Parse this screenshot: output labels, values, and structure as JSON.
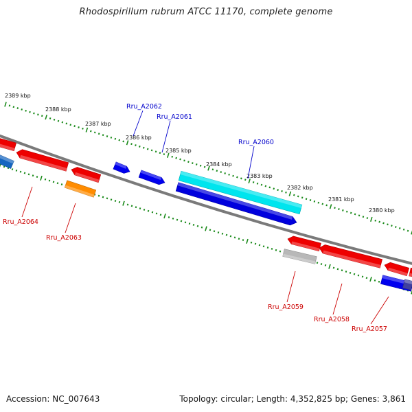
{
  "title": "Rhodospirillum rubrum ATCC 11170, complete genome",
  "footer": {
    "accession": "Accession: NC_007643",
    "topology": "Topology: circular; Length: 4,352,825 bp; Genes: 3,861"
  },
  "colors": {
    "backbone": "#7a7a7a",
    "ticks": "#1a8a1a",
    "label_forward": "#0000cc",
    "label_reverse": "#cc0000"
  },
  "kbp_labels": [
    "2389 kbp",
    "2388 kbp",
    "2387 kbp",
    "2386 kbp",
    "2385 kbp",
    "2384 kbp",
    "2383 kbp",
    "2382 kbp",
    "2381 kbp",
    "2380 kbp"
  ],
  "genes_forward": [
    {
      "name": "",
      "color": "#1565c0"
    },
    {
      "name": "",
      "color": "#0000ee"
    },
    {
      "name": "",
      "color": "#0000ee"
    },
    {
      "name": "",
      "color": "#00e5ee"
    },
    {
      "name": "",
      "color": "#0000dd"
    },
    {
      "name": "",
      "color": "#0000ee"
    },
    {
      "name": "",
      "color": "#4040a0"
    }
  ],
  "genes_reverse": [
    {
      "name": "",
      "color": "#ee0000"
    },
    {
      "name": "",
      "color": "#ee0000"
    },
    {
      "name": "",
      "color": "#ee0000"
    },
    {
      "name": "",
      "color": "#ff8c00"
    },
    {
      "name": "",
      "color": "#ee0000"
    },
    {
      "name": "",
      "color": "#b8b8b8"
    },
    {
      "name": "",
      "color": "#ee0000"
    },
    {
      "name": "",
      "color": "#ee0000"
    },
    {
      "name": "",
      "color": "#ee0000"
    }
  ],
  "gene_labels": [
    {
      "text": "Rru_A2062",
      "strand": "forward"
    },
    {
      "text": "Rru_A2061",
      "strand": "forward"
    },
    {
      "text": "Rru_A2060",
      "strand": "forward"
    },
    {
      "text": "Rru_A2064",
      "strand": "reverse"
    },
    {
      "text": "Rru_A2063",
      "strand": "reverse"
    },
    {
      "text": "Rru_A2059",
      "strand": "reverse"
    },
    {
      "text": "Rru_A2058",
      "strand": "reverse"
    },
    {
      "text": "Rru_A2057",
      "strand": "reverse"
    }
  ]
}
